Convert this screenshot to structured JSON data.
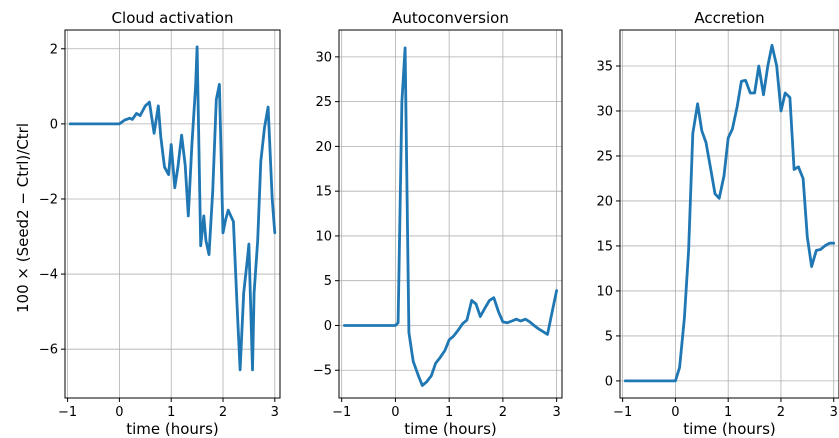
{
  "figure": {
    "ylabel": "100 × (Seed2 − Ctrl)/Ctrl",
    "line_color": "#1f77b4",
    "grid": true
  },
  "chart_data": [
    {
      "type": "line",
      "title": "Cloud activation",
      "xlabel": "time (hours)",
      "ylabel": "100 × (Seed2 − Ctrl)/Ctrl",
      "xlim": [
        -1.05,
        3.1
      ],
      "ylim": [
        -7.3,
        2.5
      ],
      "xticks": [
        -1,
        0,
        1,
        2,
        3
      ],
      "xtick_labels": [
        "−1",
        "0",
        "1",
        "2",
        "3"
      ],
      "yticks": [
        -6,
        -4,
        -2,
        0,
        2
      ],
      "ytick_labels": [
        "−6",
        "−4",
        "−2",
        "0",
        "2"
      ],
      "series": [
        {
          "x": [
            -0.95,
            -0.8,
            -0.6,
            -0.4,
            -0.2,
            0.0,
            0.1,
            0.2,
            0.25,
            0.33,
            0.4,
            0.5,
            0.58,
            0.67,
            0.75,
            0.8,
            0.87,
            0.95,
            1.0,
            1.07,
            1.13,
            1.2,
            1.27,
            1.33,
            1.4,
            1.47,
            1.5,
            1.57,
            1.63,
            1.67,
            1.73,
            1.8,
            1.87,
            1.93,
            2.0,
            2.05,
            2.1,
            2.15,
            2.2,
            2.27,
            2.33,
            2.4,
            2.47,
            2.5,
            2.57,
            2.6,
            2.67,
            2.73,
            2.8,
            2.87,
            2.95,
            3.0
          ],
          "y": [
            0.0,
            0.0,
            0.0,
            0.0,
            0.0,
            0.0,
            0.1,
            0.15,
            0.12,
            0.28,
            0.22,
            0.48,
            0.58,
            -0.25,
            0.48,
            -0.35,
            -1.15,
            -1.35,
            -0.55,
            -1.7,
            -1.15,
            -0.3,
            -1.1,
            -2.45,
            -0.55,
            1.0,
            2.05,
            -3.25,
            -2.45,
            -3.1,
            -3.48,
            -1.8,
            0.65,
            1.05,
            -2.9,
            -2.55,
            -2.3,
            -2.45,
            -2.6,
            -4.8,
            -6.55,
            -4.5,
            -3.6,
            -3.2,
            -6.55,
            -4.5,
            -3.1,
            -1.0,
            -0.1,
            0.45,
            -2.0,
            -2.9
          ]
        }
      ]
    },
    {
      "type": "line",
      "title": "Autoconversion",
      "xlabel": "time (hours)",
      "xlim": [
        -1.05,
        3.1
      ],
      "ylim": [
        -8.1,
        33.0
      ],
      "xticks": [
        -1,
        0,
        1,
        2,
        3
      ],
      "xtick_labels": [
        "−1",
        "0",
        "1",
        "2",
        "3"
      ],
      "yticks": [
        -5,
        0,
        5,
        10,
        15,
        20,
        25,
        30
      ],
      "ytick_labels": [
        "−5",
        "0",
        "5",
        "10",
        "15",
        "20",
        "25",
        "30"
      ],
      "series": [
        {
          "x": [
            -0.95,
            -0.6,
            -0.3,
            0.0,
            0.05,
            0.12,
            0.18,
            0.25,
            0.33,
            0.42,
            0.5,
            0.58,
            0.67,
            0.75,
            0.83,
            0.92,
            1.0,
            1.08,
            1.17,
            1.25,
            1.33,
            1.42,
            1.5,
            1.58,
            1.67,
            1.75,
            1.83,
            1.92,
            2.0,
            2.08,
            2.17,
            2.25,
            2.33,
            2.42,
            2.5,
            2.58,
            2.67,
            2.75,
            2.83,
            2.92,
            3.0
          ],
          "y": [
            0.0,
            0.0,
            0.0,
            0.0,
            0.3,
            25.0,
            31.0,
            -0.8,
            -4.0,
            -5.5,
            -6.7,
            -6.3,
            -5.6,
            -4.2,
            -3.6,
            -2.8,
            -1.6,
            -1.2,
            -0.5,
            0.2,
            0.6,
            2.8,
            2.4,
            1.0,
            2.0,
            2.8,
            3.1,
            1.5,
            0.4,
            0.3,
            0.5,
            0.7,
            0.5,
            0.7,
            0.4,
            0.0,
            -0.4,
            -0.7,
            -1.0,
            1.6,
            3.9
          ]
        }
      ]
    },
    {
      "type": "line",
      "title": "Accretion",
      "xlabel": "time (hours)",
      "xlim": [
        -1.05,
        3.1
      ],
      "ylim": [
        -1.9,
        39.0
      ],
      "xticks": [
        -1,
        0,
        1,
        2,
        3
      ],
      "xtick_labels": [
        "−1",
        "0",
        "1",
        "2",
        "3"
      ],
      "yticks": [
        0,
        5,
        10,
        15,
        20,
        25,
        30,
        35
      ],
      "ytick_labels": [
        "0",
        "5",
        "10",
        "15",
        "20",
        "25",
        "30",
        "35"
      ],
      "series": [
        {
          "x": [
            -0.95,
            -0.6,
            -0.3,
            0.0,
            0.08,
            0.17,
            0.25,
            0.33,
            0.42,
            0.5,
            0.58,
            0.67,
            0.75,
            0.83,
            0.92,
            1.0,
            1.08,
            1.17,
            1.25,
            1.33,
            1.42,
            1.5,
            1.58,
            1.67,
            1.75,
            1.83,
            1.92,
            2.0,
            2.08,
            2.17,
            2.25,
            2.33,
            2.42,
            2.5,
            2.58,
            2.67,
            2.75,
            2.83,
            2.92,
            3.0
          ],
          "y": [
            0.0,
            0.0,
            0.0,
            0.0,
            1.5,
            7.0,
            14.5,
            27.5,
            30.8,
            27.8,
            26.5,
            23.5,
            20.8,
            20.3,
            22.8,
            27.0,
            28.0,
            30.5,
            33.3,
            33.4,
            32.0,
            32.0,
            35.0,
            31.8,
            35.0,
            37.3,
            35.0,
            30.0,
            32.0,
            31.5,
            23.5,
            23.8,
            22.5,
            16.0,
            12.7,
            14.5,
            14.6,
            15.0,
            15.3,
            15.3
          ]
        }
      ]
    }
  ]
}
